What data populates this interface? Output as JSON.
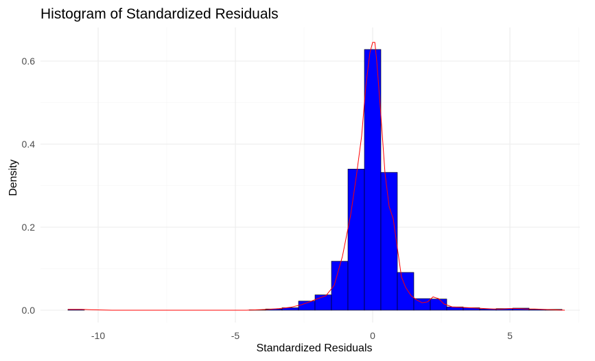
{
  "chart_data": {
    "type": "bar",
    "title": "Histogram of Standardized Residuals",
    "xlabel": "Standardized Residuals",
    "ylabel": "Density",
    "xlim": [
      -11.2,
      7.0
    ],
    "ylim": [
      0,
      0.66
    ],
    "x_ticks": [
      -10,
      -5,
      0,
      5
    ],
    "x_tick_labels": [
      "-10",
      "-5",
      "0",
      "5"
    ],
    "y_ticks": [
      0.0,
      0.2,
      0.4,
      0.6
    ],
    "y_tick_labels": [
      "0.0",
      "0.2",
      "0.4",
      "0.6"
    ],
    "grid": true,
    "bar_color": "#0000ff",
    "bar_outline_color": "#000000",
    "line_color": "#ff0000",
    "bin_width": 0.6,
    "bins": [
      {
        "x0": -11.1,
        "x1": -10.5,
        "density": 0.002
      },
      {
        "x0": -4.5,
        "x1": -3.9,
        "density": 0.001
      },
      {
        "x0": -3.9,
        "x1": -3.3,
        "density": 0.003
      },
      {
        "x0": -3.3,
        "x1": -2.7,
        "density": 0.006
      },
      {
        "x0": -2.7,
        "x1": -2.1,
        "density": 0.022
      },
      {
        "x0": -2.1,
        "x1": -1.5,
        "density": 0.037
      },
      {
        "x0": -1.5,
        "x1": -0.9,
        "density": 0.118
      },
      {
        "x0": -0.9,
        "x1": -0.3,
        "density": 0.34
      },
      {
        "x0": -0.3,
        "x1": 0.3,
        "density": 0.628
      },
      {
        "x0": 0.3,
        "x1": 0.9,
        "density": 0.332
      },
      {
        "x0": 0.9,
        "x1": 1.5,
        "density": 0.091
      },
      {
        "x0": 1.5,
        "x1": 2.1,
        "density": 0.028
      },
      {
        "x0": 2.1,
        "x1": 2.7,
        "density": 0.027
      },
      {
        "x0": 2.7,
        "x1": 3.3,
        "density": 0.008
      },
      {
        "x0": 3.3,
        "x1": 3.9,
        "density": 0.006
      },
      {
        "x0": 3.9,
        "x1": 4.5,
        "density": 0.003
      },
      {
        "x0": 4.5,
        "x1": 5.1,
        "density": 0.004
      },
      {
        "x0": 5.1,
        "x1": 5.7,
        "density": 0.005
      },
      {
        "x0": 5.7,
        "x1": 6.3,
        "density": 0.002
      },
      {
        "x0": 6.3,
        "x1": 6.9,
        "density": 0.002
      }
    ],
    "density_curve": {
      "x": [
        -11.1,
        -10.6,
        -10.2,
        -9.5,
        -8,
        -6,
        -4.6,
        -4.2,
        -3.8,
        -3.4,
        -3.0,
        -2.6,
        -2.3,
        -2.0,
        -1.7,
        -1.4,
        -1.1,
        -0.8,
        -0.6,
        -0.4,
        -0.25,
        -0.1,
        0.0,
        0.08,
        0.15,
        0.3,
        0.45,
        0.6,
        0.75,
        0.9,
        1.05,
        1.2,
        1.4,
        1.6,
        1.8,
        2.0,
        2.2,
        2.4,
        2.6,
        2.9,
        3.2,
        3.5,
        3.8,
        4.1,
        4.4,
        4.7,
        5.0,
        5.3,
        5.6,
        5.9,
        6.2,
        6.6,
        7.0
      ],
      "y": [
        0.002,
        0.002,
        0.001,
        0.0,
        0.0,
        0.0,
        0.0,
        0.001,
        0.002,
        0.004,
        0.007,
        0.013,
        0.02,
        0.028,
        0.035,
        0.06,
        0.13,
        0.23,
        0.32,
        0.42,
        0.54,
        0.62,
        0.645,
        0.645,
        0.6,
        0.47,
        0.33,
        0.25,
        0.22,
        0.15,
        0.08,
        0.055,
        0.035,
        0.025,
        0.018,
        0.02,
        0.032,
        0.028,
        0.015,
        0.008,
        0.007,
        0.006,
        0.005,
        0.004,
        0.003,
        0.003,
        0.004,
        0.004,
        0.003,
        0.003,
        0.002,
        0.001,
        0.0
      ]
    }
  }
}
